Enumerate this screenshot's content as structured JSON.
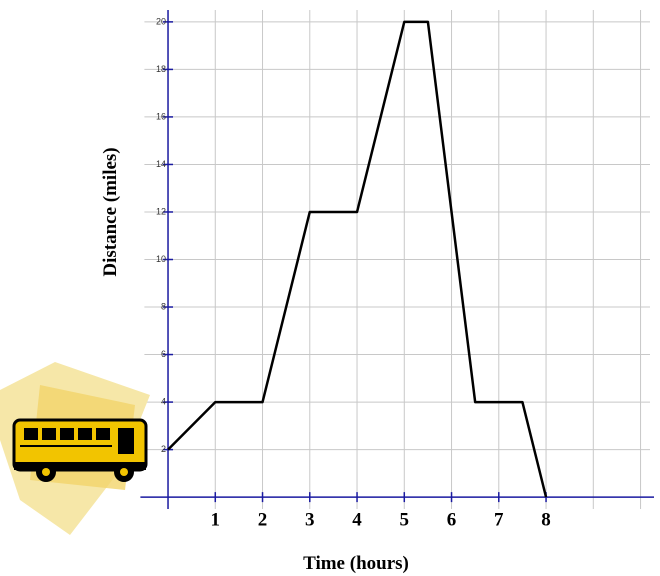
{
  "chart_data": {
    "type": "line",
    "x_label": "Time (hours)",
    "y_label": "Distance (miles)",
    "x": [
      0,
      1,
      2,
      3,
      4,
      5,
      5.5,
      6.5,
      7.5,
      8
    ],
    "series": [
      {
        "name": "Bus trip",
        "color": "#000000",
        "values": [
          2,
          4,
          4,
          12,
          12,
          20,
          20,
          4,
          4,
          0
        ]
      }
    ],
    "xlim": [
      -0.5,
      10.2
    ],
    "ylim": [
      -0.5,
      20.5
    ],
    "xticks": [
      1,
      2,
      3,
      4,
      5,
      6,
      7,
      8
    ],
    "yticks": [
      2,
      4,
      6,
      8,
      10,
      12,
      14,
      16,
      18,
      20
    ],
    "xgrid": [
      0,
      1,
      2,
      3,
      4,
      5,
      6,
      7,
      8,
      9,
      10
    ],
    "grid": true
  }
}
